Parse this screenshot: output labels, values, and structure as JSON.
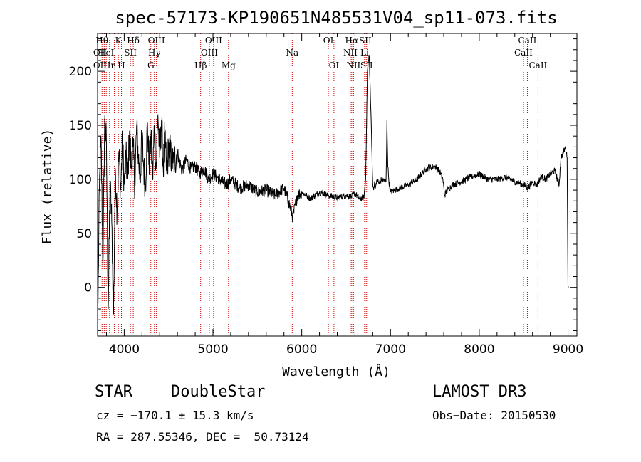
{
  "chart_data": {
    "type": "line",
    "title": "spec-57173-KP190651N485531V04_sp11-073.fits",
    "xlabel": "Wavelength (Å)",
    "ylabel": "Flux (relative)",
    "xlim": [
      3700,
      9100
    ],
    "ylim": [
      -45,
      235
    ],
    "xticks": [
      4000,
      5000,
      6000,
      7000,
      8000,
      9000
    ],
    "xtick_labels": [
      "4000",
      "5000",
      "6000",
      "7000",
      "8000",
      "9000"
    ],
    "yticks": [
      0,
      50,
      100,
      150,
      200
    ],
    "ytick_labels": [
      "0",
      "50",
      "100",
      "150",
      "200"
    ],
    "series": [
      {
        "name": "flux",
        "color": "#000000",
        "x": [
          3705,
          3720,
          3740,
          3760,
          3780,
          3800,
          3820,
          3840,
          3860,
          3880,
          3900,
          3920,
          3940,
          3960,
          3980,
          4000,
          4020,
          4040,
          4060,
          4080,
          4100,
          4120,
          4140,
          4160,
          4180,
          4200,
          4220,
          4240,
          4260,
          4280,
          4300,
          4320,
          4340,
          4360,
          4380,
          4400,
          4420,
          4440,
          4460,
          4480,
          4500,
          4550,
          4600,
          4650,
          4700,
          4750,
          4800,
          4850,
          4900,
          4950,
          5000,
          5050,
          5100,
          5150,
          5200,
          5300,
          5400,
          5500,
          5600,
          5700,
          5800,
          5850,
          5900,
          5950,
          6000,
          6100,
          6200,
          6300,
          6400,
          6500,
          6560,
          6600,
          6650,
          6700,
          6720,
          6740,
          6760,
          6780,
          6800,
          6810,
          6820,
          6830,
          6840,
          6850,
          6870,
          6900,
          6950,
          6960,
          6970,
          6980,
          7000,
          7100,
          7200,
          7300,
          7400,
          7500,
          7550,
          7590,
          7610,
          7640,
          7700,
          7800,
          7900,
          8000,
          8100,
          8200,
          8300,
          8400,
          8500,
          8550,
          8600,
          8650,
          8700,
          8750,
          8800,
          8850,
          8900,
          8920,
          8950,
          8970,
          8990,
          9000,
          9005
        ],
        "values": [
          -15,
          90,
          135,
          20,
          155,
          130,
          -20,
          95,
          60,
          -25,
          110,
          70,
          125,
          90,
          135,
          95,
          120,
          100,
          145,
          110,
          130,
          95,
          150,
          120,
          100,
          140,
          110,
          95,
          150,
          115,
          140,
          100,
          150,
          110,
          160,
          120,
          155,
          110,
          140,
          105,
          130,
          115,
          125,
          108,
          118,
          110,
          112,
          105,
          110,
          100,
          105,
          102,
          98,
          95,
          100,
          92,
          95,
          88,
          90,
          85,
          92,
          80,
          65,
          85,
          88,
          82,
          88,
          85,
          83,
          85,
          84,
          87,
          82,
          83,
          100,
          200,
          215,
          160,
          95,
          90,
          98,
          92,
          95,
          100,
          96,
          100,
          98,
          155,
          112,
          100,
          88,
          92,
          95,
          100,
          110,
          112,
          108,
          100,
          85,
          90,
          95,
          98,
          102,
          105,
          100,
          100,
          102,
          98,
          95,
          92,
          98,
          95,
          103,
          100,
          105,
          108,
          95,
          120,
          125,
          130,
          120,
          0,
          0
        ]
      }
    ],
    "lines": [
      {
        "x": 3728,
        "labels": [
          "OII"
        ]
      },
      {
        "x": 3750,
        "labels": [
          "Hθ"
        ]
      },
      {
        "x": 3775,
        "labels": [
          "OII"
        ]
      },
      {
        "x": 3798,
        "labels": [
          "HeI"
        ]
      },
      {
        "x": 3835,
        "labels": [
          "Hη"
        ]
      },
      {
        "x": 3889,
        "labels": [
          "HeI"
        ]
      },
      {
        "x": 3934,
        "labels": [
          "K"
        ]
      },
      {
        "x": 3969,
        "labels": [
          "H"
        ]
      },
      {
        "x": 4070,
        "labels": [
          "SII"
        ]
      },
      {
        "x": 4102,
        "labels": [
          "Hδ"
        ]
      },
      {
        "x": 4300,
        "labels": [
          "G"
        ]
      },
      {
        "x": 4340,
        "labels": [
          "Hγ"
        ]
      },
      {
        "x": 4363,
        "labels": [
          "OIII"
        ]
      },
      {
        "x": 4861,
        "labels": [
          "Hβ"
        ]
      },
      {
        "x": 4959,
        "labels": [
          "OIII"
        ]
      },
      {
        "x": 5007,
        "labels": [
          "OIII"
        ]
      },
      {
        "x": 5175,
        "labels": [
          "Mg"
        ]
      },
      {
        "x": 5893,
        "labels": [
          "Na"
        ]
      },
      {
        "x": 6300,
        "labels": [
          "OI"
        ]
      },
      {
        "x": 6363,
        "labels": [
          "OI"
        ]
      },
      {
        "x": 6548,
        "labels": [
          "NII"
        ]
      },
      {
        "x": 6563,
        "labels": [
          "Hα"
        ]
      },
      {
        "x": 6583,
        "labels": [
          "NII"
        ]
      },
      {
        "x": 6708,
        "labels": [
          "Li"
        ]
      },
      {
        "x": 6716,
        "labels": [
          "SII"
        ]
      },
      {
        "x": 6731,
        "labels": [
          "SII"
        ]
      },
      {
        "x": 8498,
        "labels": [
          "CaII"
        ]
      },
      {
        "x": 8542,
        "labels": [
          "CaII"
        ]
      },
      {
        "x": 8662,
        "labels": [
          "CaII"
        ]
      }
    ],
    "line_label_rows": [
      [
        {
          "x": 3750,
          "text": "Hθ"
        },
        {
          "x": 3934,
          "text": "K"
        },
        {
          "x": 4102,
          "text": "Hδ"
        },
        {
          "x": 4363,
          "text": "OIII"
        },
        {
          "x": 5007,
          "text": "OIII"
        },
        {
          "x": 6300,
          "text": "OI"
        },
        {
          "x": 6563,
          "text": "Hα"
        },
        {
          "x": 6716,
          "text": "SII"
        },
        {
          "x": 8542,
          "text": "CaII"
        }
      ],
      [
        {
          "x": 3728,
          "text": "OII"
        },
        {
          "x": 3798,
          "text": "HeI"
        },
        {
          "x": 4070,
          "text": "SII"
        },
        {
          "x": 4340,
          "text": "Hγ"
        },
        {
          "x": 4959,
          "text": "OIII"
        },
        {
          "x": 5893,
          "text": "Na"
        },
        {
          "x": 6548,
          "text": "NII"
        },
        {
          "x": 6708,
          "text": "Li"
        },
        {
          "x": 8498,
          "text": "CaII"
        }
      ],
      [
        {
          "x": 3728,
          "text": "OII"
        },
        {
          "x": 3835,
          "text": "Hη"
        },
        {
          "x": 3969,
          "text": "H"
        },
        {
          "x": 4300,
          "text": "G"
        },
        {
          "x": 4861,
          "text": "Hβ"
        },
        {
          "x": 5175,
          "text": "Mg"
        },
        {
          "x": 6363,
          "text": "OI"
        },
        {
          "x": 6583,
          "text": "NII"
        },
        {
          "x": 6731,
          "text": "SII"
        },
        {
          "x": 8662,
          "text": "CaII"
        }
      ]
    ],
    "line_color": "#cc0000",
    "grid": false
  },
  "info": {
    "object_class": "STAR",
    "subclass": "DoubleStar",
    "survey": "LAMOST DR3",
    "cz": "cz = −170.1 ± 15.3 km/s",
    "obs_date": "Obs−Date: 20150530",
    "radec": "RA = 287.55346, DEC =  50.73124"
  }
}
